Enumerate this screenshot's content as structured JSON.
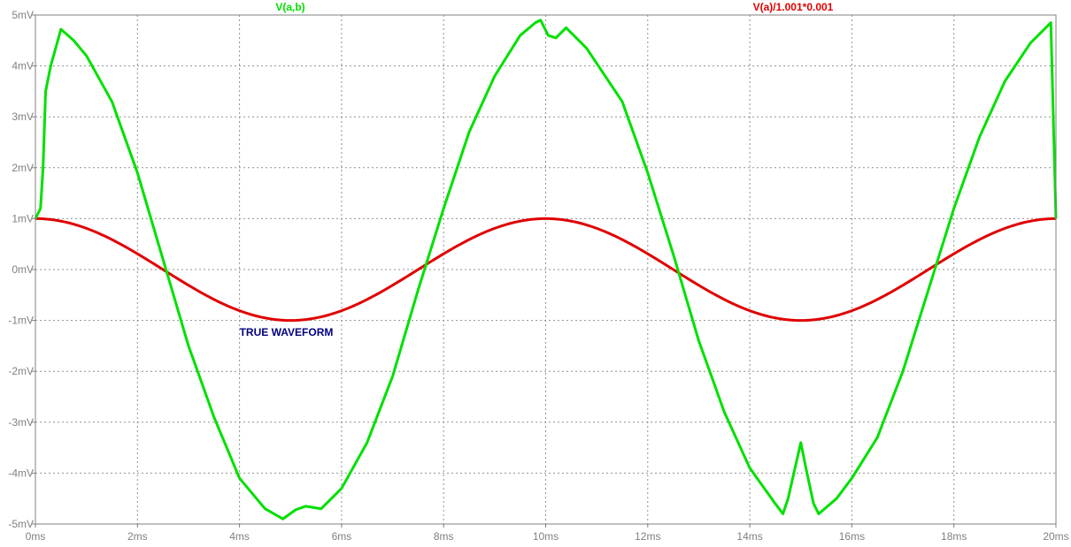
{
  "chart_data": {
    "type": "line",
    "title": "",
    "xlabel": "",
    "ylabel": "",
    "xlim": [
      0,
      20
    ],
    "ylim": [
      -5,
      5
    ],
    "grid": true,
    "x_ticks": [
      0,
      2,
      4,
      6,
      8,
      10,
      12,
      14,
      16,
      18,
      20
    ],
    "x_tick_labels": [
      "0ms",
      "2ms",
      "4ms",
      "6ms",
      "8ms",
      "10ms",
      "12ms",
      "14ms",
      "16ms",
      "18ms",
      "20ms"
    ],
    "y_ticks": [
      5,
      4,
      3,
      2,
      1,
      0,
      -1,
      -2,
      -3,
      -4,
      -5
    ],
    "y_tick_labels": [
      "5mV",
      "4mV",
      "3mV",
      "2mV",
      "1mV",
      "0mV",
      "-1mV",
      "-2mV",
      "-3mV",
      "-4mV",
      "-5mV"
    ],
    "annotation": {
      "text": "TRUE WAVEFORM",
      "x": 4.0,
      "y": -1.3,
      "color": "#000080"
    },
    "series": [
      {
        "name": "V(a,b)",
        "color": "#00e000",
        "x": [
          0,
          0.1,
          0.15,
          0.2,
          0.3,
          0.5,
          0.75,
          1.0,
          1.5,
          2.0,
          2.5,
          3.0,
          3.5,
          4.0,
          4.5,
          4.85,
          5.1,
          5.3,
          5.6,
          6.0,
          6.5,
          7.0,
          7.5,
          8.0,
          8.5,
          9.0,
          9.5,
          9.8,
          9.9,
          10.05,
          10.2,
          10.4,
          10.8,
          11.5,
          12.0,
          12.5,
          13.0,
          13.5,
          14.0,
          14.5,
          14.65,
          14.75,
          15.0,
          15.1,
          15.25,
          15.35,
          15.7,
          16.0,
          16.5,
          17.0,
          17.5,
          18.0,
          18.5,
          19.0,
          19.5,
          19.8,
          19.9,
          20.0
        ],
        "y": [
          1.0,
          1.2,
          2.0,
          3.5,
          4.0,
          4.72,
          4.5,
          4.2,
          3.3,
          1.9,
          0.2,
          -1.5,
          -2.9,
          -4.1,
          -4.7,
          -4.9,
          -4.72,
          -4.65,
          -4.7,
          -4.3,
          -3.4,
          -2.1,
          -0.4,
          1.2,
          2.7,
          3.8,
          4.6,
          4.85,
          4.9,
          4.6,
          4.55,
          4.75,
          4.35,
          3.3,
          1.9,
          0.3,
          -1.4,
          -2.8,
          -3.9,
          -4.6,
          -4.8,
          -4.5,
          -3.4,
          -3.9,
          -4.6,
          -4.8,
          -4.5,
          -4.1,
          -3.3,
          -2.0,
          -0.4,
          1.2,
          2.6,
          3.7,
          4.45,
          4.75,
          4.85,
          1.0
        ]
      },
      {
        "name": "V(a)/1.001*0.001",
        "color": "#e00000",
        "function": "cos",
        "amplitude": 1.0,
        "period": 10
      }
    ]
  }
}
